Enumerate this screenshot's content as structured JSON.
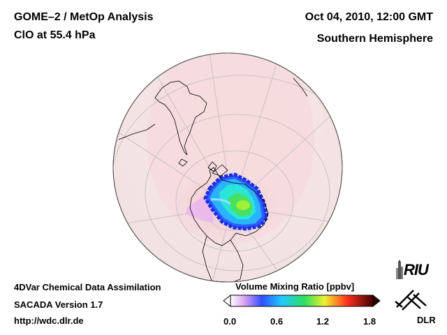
{
  "header": {
    "title_line1": "GOME–2 / MetOp Analysis",
    "title_line2": "ClO at 55.4 hPa",
    "date": "Oct 04, 2010, 12:00 GMT",
    "hemisphere": "Southern Hemisphere"
  },
  "footer": {
    "line1": "4DVar Chemical Data Assimilation",
    "line2": "SACADA Version 1.7",
    "url": "http://wdc.dlr.de"
  },
  "colorbar": {
    "title": "Volume Mixing Ratio [ppbv]",
    "ticks": [
      "0.0",
      "0.6",
      "1.2",
      "1.8"
    ],
    "range": [
      0.0,
      1.8
    ],
    "stops": [
      "#ffffff",
      "#d9a0f0",
      "#3050ff",
      "#20c8ff",
      "#30e060",
      "#f0f030",
      "#ff3020",
      "#300000"
    ]
  },
  "logos": {
    "riu": "RIU",
    "dlr": "DLR"
  },
  "colors": {
    "ocean_background": "#f7e6e6",
    "grid_lines": "#bbbbbb",
    "coastline": "#000000"
  }
}
